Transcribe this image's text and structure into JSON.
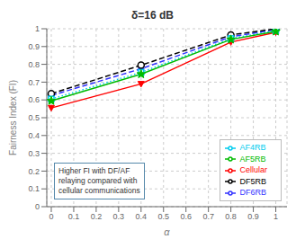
{
  "chart_data": {
    "type": "line",
    "title": "δ=16 dB",
    "xlabel": "α",
    "ylabel": "Fairness Index (FI)",
    "x": [
      0,
      0.4,
      0.8,
      1.0
    ],
    "series": [
      {
        "name": "Cellular",
        "color": "#ff0000",
        "marker": "triangle_down",
        "line_style": "solid",
        "values": [
          0.555,
          0.69,
          0.925,
          0.98
        ]
      },
      {
        "name": "DF6RB",
        "color": "#3333ff",
        "marker": "triangle_right",
        "line_style": "dashed",
        "values": [
          0.625,
          0.775,
          0.955,
          0.995
        ]
      },
      {
        "name": "DF5RB",
        "color": "#000000",
        "marker": "circle",
        "line_style": "dashed",
        "values": [
          0.635,
          0.795,
          0.965,
          1.0
        ]
      },
      {
        "name": "AF4RB",
        "color": "#00ccee",
        "marker": "square",
        "line_style": "dotted",
        "values": [
          0.605,
          0.755,
          0.945,
          0.99
        ]
      },
      {
        "name": "AF5RB",
        "color": "#00bb00",
        "marker": "star",
        "line_style": "solid",
        "values": [
          0.595,
          0.745,
          0.94,
          0.985
        ]
      }
    ],
    "xlim": [
      -0.02,
      1.05
    ],
    "ylim": [
      0,
      1.0
    ],
    "xticks": [
      0,
      0.1,
      0.2,
      0.3,
      0.4,
      0.5,
      0.6,
      0.7,
      0.8,
      0.9,
      1
    ],
    "yticks": [
      0,
      0.1,
      0.2,
      0.3,
      0.4,
      0.5,
      0.6,
      0.7,
      0.8,
      0.9,
      1
    ],
    "grid": true,
    "legend": "lower right",
    "annotations": [
      "Higher FI with DF/AF\nrelaying compared with\ncellular communications"
    ]
  }
}
